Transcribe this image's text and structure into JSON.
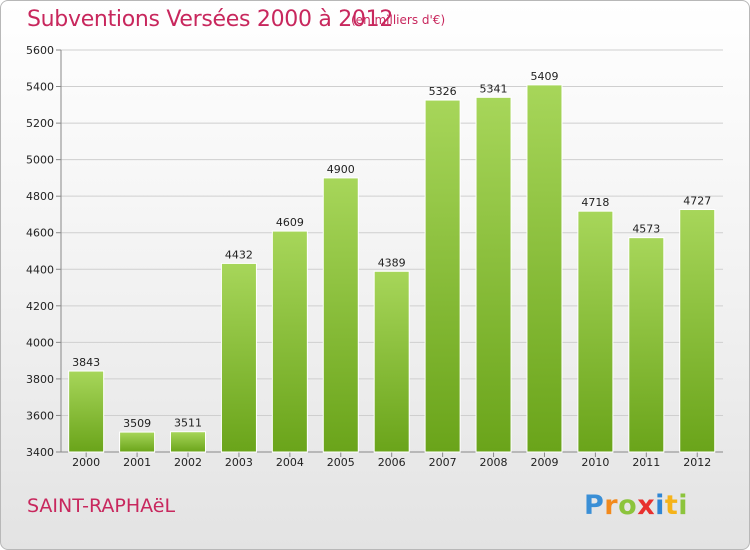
{
  "header": {
    "title": "Subventions Versées 2000 à 2012",
    "unit": "(en milliers d'€)"
  },
  "footer": {
    "city": "SAINT-RAPHAëL",
    "brand": "Proxiti",
    "brand_letters": [
      {
        "ch": "P",
        "color": "#3a8fd6"
      },
      {
        "ch": "r",
        "color": "#f28a1c"
      },
      {
        "ch": "o",
        "color": "#8cc43c"
      },
      {
        "ch": "x",
        "color": "#e8302e"
      },
      {
        "ch": "i",
        "color": "#2f86d4"
      },
      {
        "ch": "t",
        "color": "#f5b31a"
      },
      {
        "ch": "i",
        "color": "#8cc43c"
      }
    ]
  },
  "colors": {
    "accent": "#c8275d",
    "bar_light": "#a7d65a",
    "bar_dark": "#6aa41a"
  },
  "chart_data": {
    "type": "bar",
    "categories": [
      "2000",
      "2001",
      "2002",
      "2003",
      "2004",
      "2005",
      "2006",
      "2007",
      "2008",
      "2009",
      "2010",
      "2011",
      "2012"
    ],
    "values": [
      3843,
      3509,
      3511,
      4432,
      4609,
      4900,
      4389,
      5326,
      5341,
      5409,
      4718,
      4573,
      4727
    ],
    "ylim": [
      3400,
      5600
    ],
    "yticks": [
      3400,
      3600,
      3800,
      4000,
      4200,
      4400,
      4600,
      4800,
      5000,
      5200,
      5400,
      5600
    ],
    "grid": true
  }
}
